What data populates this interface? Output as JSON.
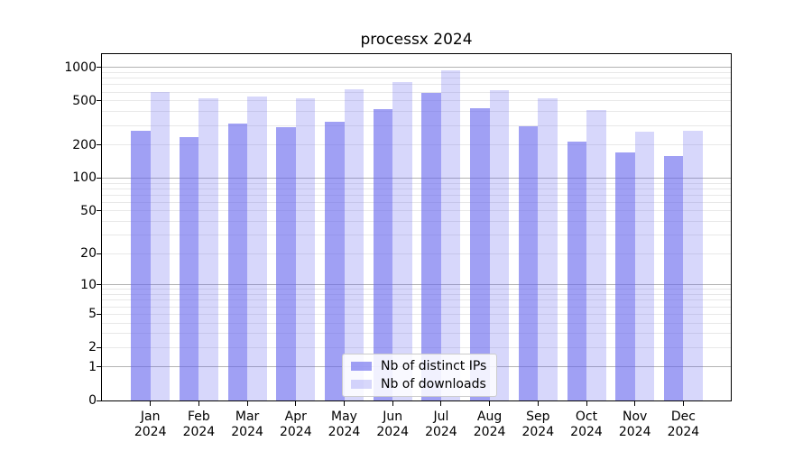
{
  "chart_data": {
    "type": "bar",
    "title": "processx 2024",
    "year": "2024",
    "months": [
      "Jan",
      "Feb",
      "Mar",
      "Apr",
      "May",
      "Jun",
      "Jul",
      "Aug",
      "Sep",
      "Oct",
      "Nov",
      "Dec"
    ],
    "categories": [
      "Jan 2024",
      "Feb 2024",
      "Mar 2024",
      "Apr 2024",
      "May 2024",
      "Jun 2024",
      "Jul 2024",
      "Aug 2024",
      "Sep 2024",
      "Oct 2024",
      "Nov 2024",
      "Dec 2024"
    ],
    "series": [
      {
        "name": "Nb of distinct IPs",
        "color": "rgba(102,102,238,0.62)",
        "rendered_color": "#a8a8f0",
        "values": [
          267,
          235,
          310,
          291,
          324,
          423,
          588,
          432,
          294,
          213,
          170,
          159
        ]
      },
      {
        "name": "Nb of downloads",
        "color": "rgba(102,102,238,0.26)",
        "rendered_color": "#d8d8f8",
        "values": [
          599,
          529,
          550,
          533,
          641,
          745,
          948,
          630,
          528,
          417,
          263,
          270
        ]
      }
    ],
    "xlabel": "",
    "ylabel": "",
    "y_ticks": [
      0,
      1,
      2,
      5,
      10,
      20,
      50,
      100,
      200,
      500,
      1000
    ],
    "y_major_gridlines": [
      1,
      10,
      100,
      1000
    ],
    "scale": "log1p",
    "ylim": [
      0,
      1323
    ],
    "grid": "on",
    "legend_position": "lower center",
    "colors": {
      "major_grid": "#b3b3b3",
      "minor_grid": "#e8e8e8",
      "spine": "#000000",
      "bar_base": "#6666ee"
    }
  }
}
